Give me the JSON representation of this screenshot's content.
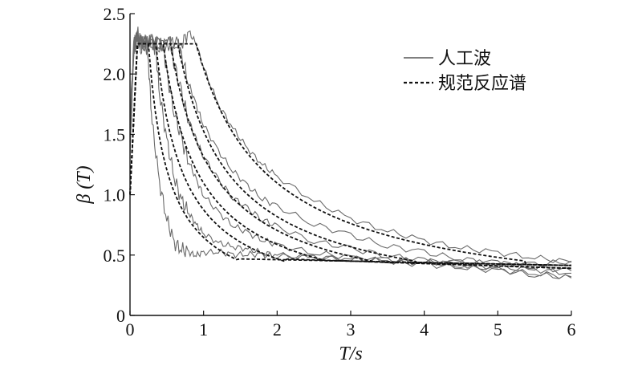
{
  "chart_data": {
    "type": "line",
    "xlabel": "T/s",
    "ylabel": "β (T)",
    "xlim": [
      0,
      6
    ],
    "ylim": [
      0,
      2.5
    ],
    "xticks": [
      "0",
      "1",
      "2",
      "3",
      "4",
      "5",
      "6"
    ],
    "yticks": [
      "0",
      "0.5",
      "1.0",
      "1.5",
      "2.0",
      "2.5"
    ],
    "grid": false,
    "legend_position": "top-right",
    "legend": [
      {
        "label": "人工波",
        "style": "solid"
      },
      {
        "label": "规范反应谱",
        "style": "dashed"
      }
    ],
    "design_spectra": [
      {
        "Tg": 0.25,
        "plateau": 2.25,
        "gamma": 0.9
      },
      {
        "Tg": 0.35,
        "plateau": 2.25,
        "gamma": 0.9
      },
      {
        "Tg": 0.45,
        "plateau": 2.25,
        "gamma": 0.9
      },
      {
        "Tg": 0.55,
        "plateau": 2.25,
        "gamma": 0.9
      },
      {
        "Tg": 0.65,
        "plateau": 2.25,
        "gamma": 0.9
      },
      {
        "Tg": 0.9,
        "plateau": 2.25,
        "gamma": 0.9
      }
    ],
    "artificial_wave_series": [
      {
        "x": [
          0,
          0.05,
          0.1,
          0.15,
          0.2,
          0.25,
          0.3,
          0.4,
          0.5,
          0.6,
          0.7,
          0.8,
          0.9,
          1.0,
          1.2,
          1.4,
          1.6,
          1.8,
          2.0,
          2.5,
          3.0,
          3.5,
          4.0,
          4.5,
          5.0,
          5.5,
          6.0
        ],
        "values": [
          1.3,
          2.2,
          2.35,
          2.25,
          2.3,
          2.1,
          1.6,
          1.1,
          0.8,
          0.6,
          0.55,
          0.52,
          0.5,
          0.52,
          0.53,
          0.5,
          0.51,
          0.5,
          0.49,
          0.48,
          0.47,
          0.46,
          0.45,
          0.44,
          0.43,
          0.42,
          0.45
        ]
      },
      {
        "x": [
          0,
          0.05,
          0.1,
          0.15,
          0.2,
          0.3,
          0.35,
          0.4,
          0.5,
          0.6,
          0.7,
          0.8,
          0.9,
          1.0,
          1.2,
          1.4,
          1.6,
          1.8,
          2.0,
          2.5,
          3.0,
          3.5,
          4.0,
          4.5,
          5.0,
          5.5,
          6.0
        ],
        "values": [
          1.4,
          2.25,
          2.3,
          2.2,
          2.28,
          2.25,
          2.2,
          1.85,
          1.45,
          1.15,
          0.95,
          0.85,
          0.75,
          0.68,
          0.6,
          0.57,
          0.55,
          0.52,
          0.5,
          0.48,
          0.47,
          0.45,
          0.44,
          0.42,
          0.4,
          0.38,
          0.35
        ]
      },
      {
        "x": [
          0,
          0.05,
          0.1,
          0.2,
          0.3,
          0.45,
          0.5,
          0.6,
          0.7,
          0.8,
          0.9,
          1.0,
          1.2,
          1.4,
          1.6,
          1.8,
          2.0,
          2.5,
          3.0,
          3.5,
          4.0,
          4.5,
          5.0,
          5.5,
          6.0
        ],
        "values": [
          1.5,
          2.2,
          2.3,
          2.25,
          2.27,
          2.25,
          2.0,
          1.7,
          1.45,
          1.28,
          1.12,
          1.0,
          0.85,
          0.75,
          0.68,
          0.63,
          0.58,
          0.52,
          0.48,
          0.45,
          0.42,
          0.4,
          0.37,
          0.35,
          0.32
        ]
      },
      {
        "x": [
          0,
          0.05,
          0.1,
          0.2,
          0.3,
          0.4,
          0.55,
          0.6,
          0.7,
          0.8,
          0.9,
          1.0,
          1.2,
          1.4,
          1.6,
          1.8,
          2.0,
          2.5,
          3.0,
          3.5,
          4.0,
          4.5,
          5.0,
          5.5,
          6.0
        ],
        "values": [
          1.5,
          2.2,
          2.28,
          2.25,
          2.26,
          2.24,
          2.25,
          2.1,
          1.83,
          1.62,
          1.45,
          1.32,
          1.12,
          0.98,
          0.88,
          0.8,
          0.73,
          0.62,
          0.55,
          0.5,
          0.45,
          0.42,
          0.38,
          0.34,
          0.31
        ]
      },
      {
        "x": [
          0,
          0.05,
          0.1,
          0.2,
          0.3,
          0.4,
          0.5,
          0.65,
          0.7,
          0.8,
          0.9,
          1.0,
          1.2,
          1.4,
          1.6,
          1.8,
          2.0,
          2.5,
          3.0,
          3.5,
          4.0,
          4.5,
          5.0,
          5.5,
          6.0
        ],
        "values": [
          1.5,
          2.2,
          2.28,
          2.25,
          2.26,
          2.24,
          2.25,
          2.25,
          2.15,
          1.92,
          1.74,
          1.58,
          1.36,
          1.2,
          1.07,
          0.97,
          0.9,
          0.76,
          0.66,
          0.58,
          0.52,
          0.47,
          0.43,
          0.4,
          0.37
        ]
      },
      {
        "x": [
          0,
          0.05,
          0.1,
          0.2,
          0.3,
          0.5,
          0.7,
          0.8,
          0.9,
          1.0,
          1.2,
          1.4,
          1.6,
          1.8,
          2.0,
          2.5,
          3.0,
          3.5,
          4.0,
          4.5,
          5.0,
          5.5,
          6.0
        ],
        "values": [
          1.6,
          2.25,
          2.3,
          2.25,
          2.27,
          2.25,
          2.25,
          2.35,
          2.25,
          2.05,
          1.75,
          1.55,
          1.38,
          1.25,
          1.15,
          0.95,
          0.8,
          0.7,
          0.62,
          0.56,
          0.52,
          0.48,
          0.44
        ]
      }
    ]
  }
}
